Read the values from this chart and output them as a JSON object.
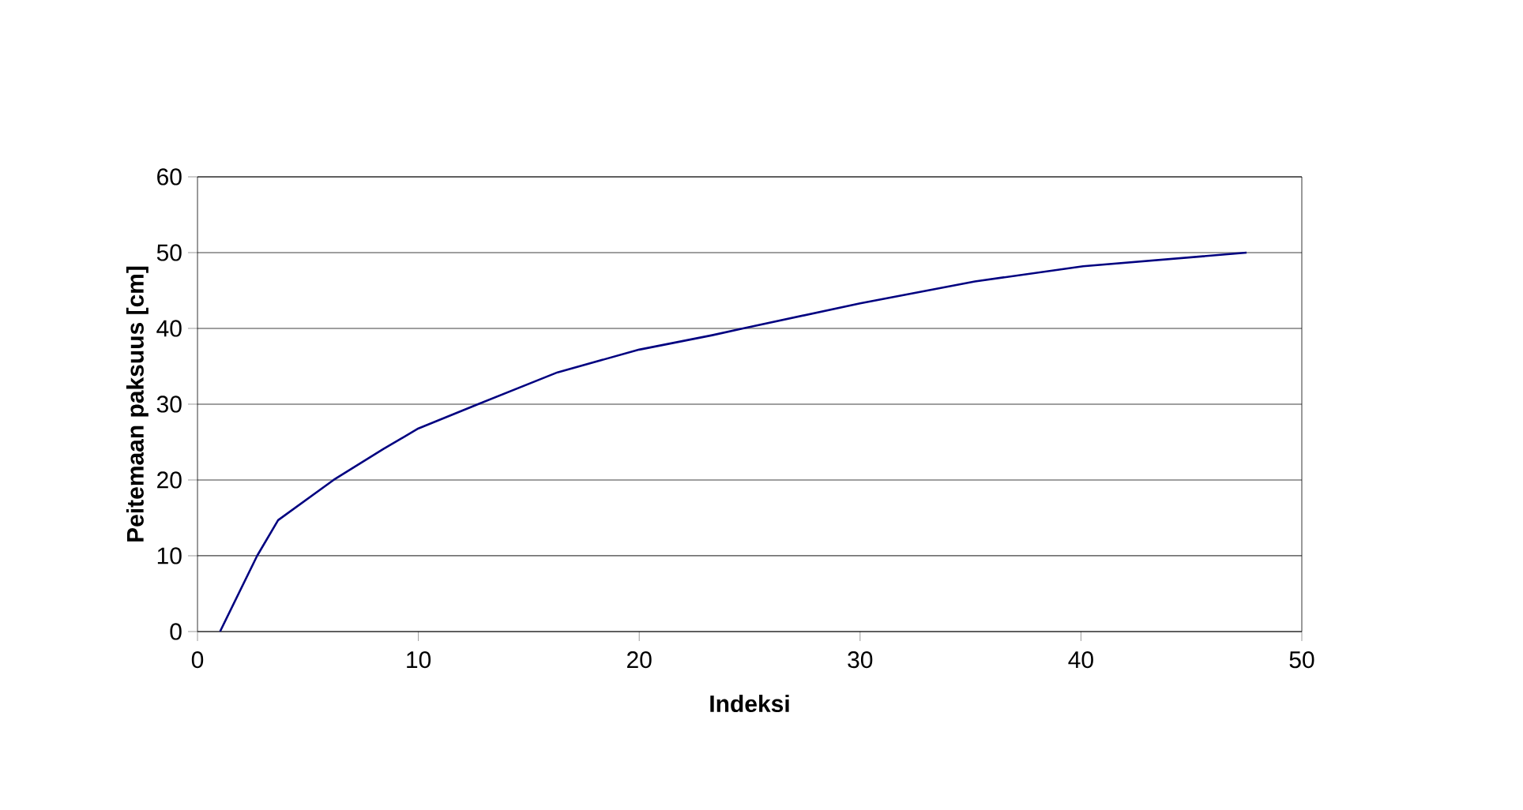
{
  "chart_data": {
    "type": "line",
    "xlabel": "Indeksi",
    "ylabel": "Peitemaan paksuus [cm]",
    "x": [
      1.02,
      2.7,
      3.65,
      6.16,
      8.42,
      10,
      12.7,
      16.3,
      20,
      23.3,
      24.7,
      30,
      35.2,
      40.1,
      47.5
    ],
    "series": [
      {
        "color": "#000080",
        "values": [
          0,
          10,
          14.7,
          20,
          24.1,
          26.8,
          30,
          34.2,
          37.2,
          39.1,
          40,
          43.3,
          46.2,
          48.2,
          50
        ]
      }
    ],
    "xlim": [
      0,
      50
    ],
    "ylim": [
      0,
      60
    ],
    "xticks": [
      0,
      10,
      20,
      30,
      40,
      50
    ],
    "yticks": [
      0,
      10,
      20,
      30,
      40,
      50,
      60
    ],
    "grid": "y",
    "marker": "none",
    "line_style": "solid"
  }
}
